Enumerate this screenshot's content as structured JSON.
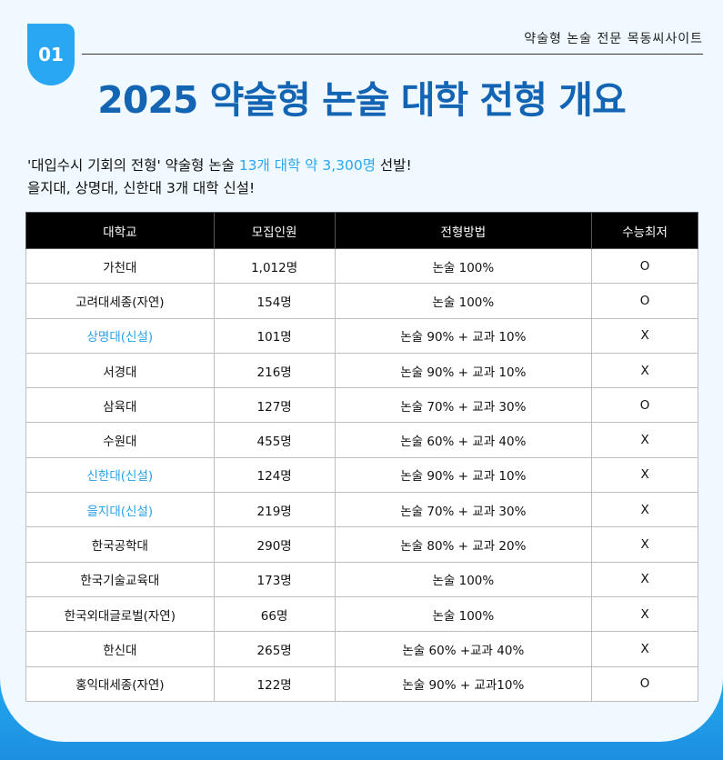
{
  "header": {
    "badge": "01",
    "site_name": "약술형 논술 전문 목동씨사이트",
    "title": "2025 약술형 논술 대학 전형 개요"
  },
  "intro": {
    "line1_prefix": "'대입수시 기회의 전형' 약술형 논술 ",
    "line1_highlight": "13개 대학 약 3,300명",
    "line1_suffix": " 선발!",
    "line2": "을지대, 상명대, 신한대 3개 대학 신설!"
  },
  "colors": {
    "title": "#1464b4",
    "accent": "#2aa7f2",
    "header_bg": "#000000"
  },
  "table": {
    "headers": [
      "대학교",
      "모집인원",
      "전형방법",
      "수능최저"
    ],
    "rows": [
      {
        "university": "가천대",
        "count": "1,012명",
        "method": "논술 100%",
        "csat": "O",
        "new": false
      },
      {
        "university": "고려대세종(자연)",
        "count": "154명",
        "method": "논술 100%",
        "csat": "O",
        "new": false
      },
      {
        "university": "상명대(신설)",
        "count": "101명",
        "method": "논술 90% + 교과 10%",
        "csat": "X",
        "new": true
      },
      {
        "university": "서경대",
        "count": "216명",
        "method": "논술 90% + 교과 10%",
        "csat": "X",
        "new": false
      },
      {
        "university": "삼육대",
        "count": "127명",
        "method": "논술 70% + 교과 30%",
        "csat": "O",
        "new": false
      },
      {
        "university": "수원대",
        "count": "455명",
        "method": "논술 60% + 교과 40%",
        "csat": "X",
        "new": false
      },
      {
        "university": "신한대(신설)",
        "count": "124명",
        "method": "논술 90% + 교과 10%",
        "csat": "X",
        "new": true
      },
      {
        "university": "을지대(신설)",
        "count": "219명",
        "method": "논술 70% + 교과 30%",
        "csat": "X",
        "new": true
      },
      {
        "university": "한국공학대",
        "count": "290명",
        "method": "논술 80% + 교과 20%",
        "csat": "X",
        "new": false
      },
      {
        "university": "한국기술교육대",
        "count": "173명",
        "method": "논술 100%",
        "csat": "X",
        "new": false
      },
      {
        "university": "한국외대글로벌(자연)",
        "count": "66명",
        "method": "논술 100%",
        "csat": "X",
        "new": false
      },
      {
        "university": "한신대",
        "count": "265명",
        "method": "논술 60% +교과 40%",
        "csat": "X",
        "new": false
      },
      {
        "university": "홍익대세종(자연)",
        "count": "122명",
        "method": "논술 90% + 교과10%",
        "csat": "O",
        "new": false
      }
    ]
  }
}
